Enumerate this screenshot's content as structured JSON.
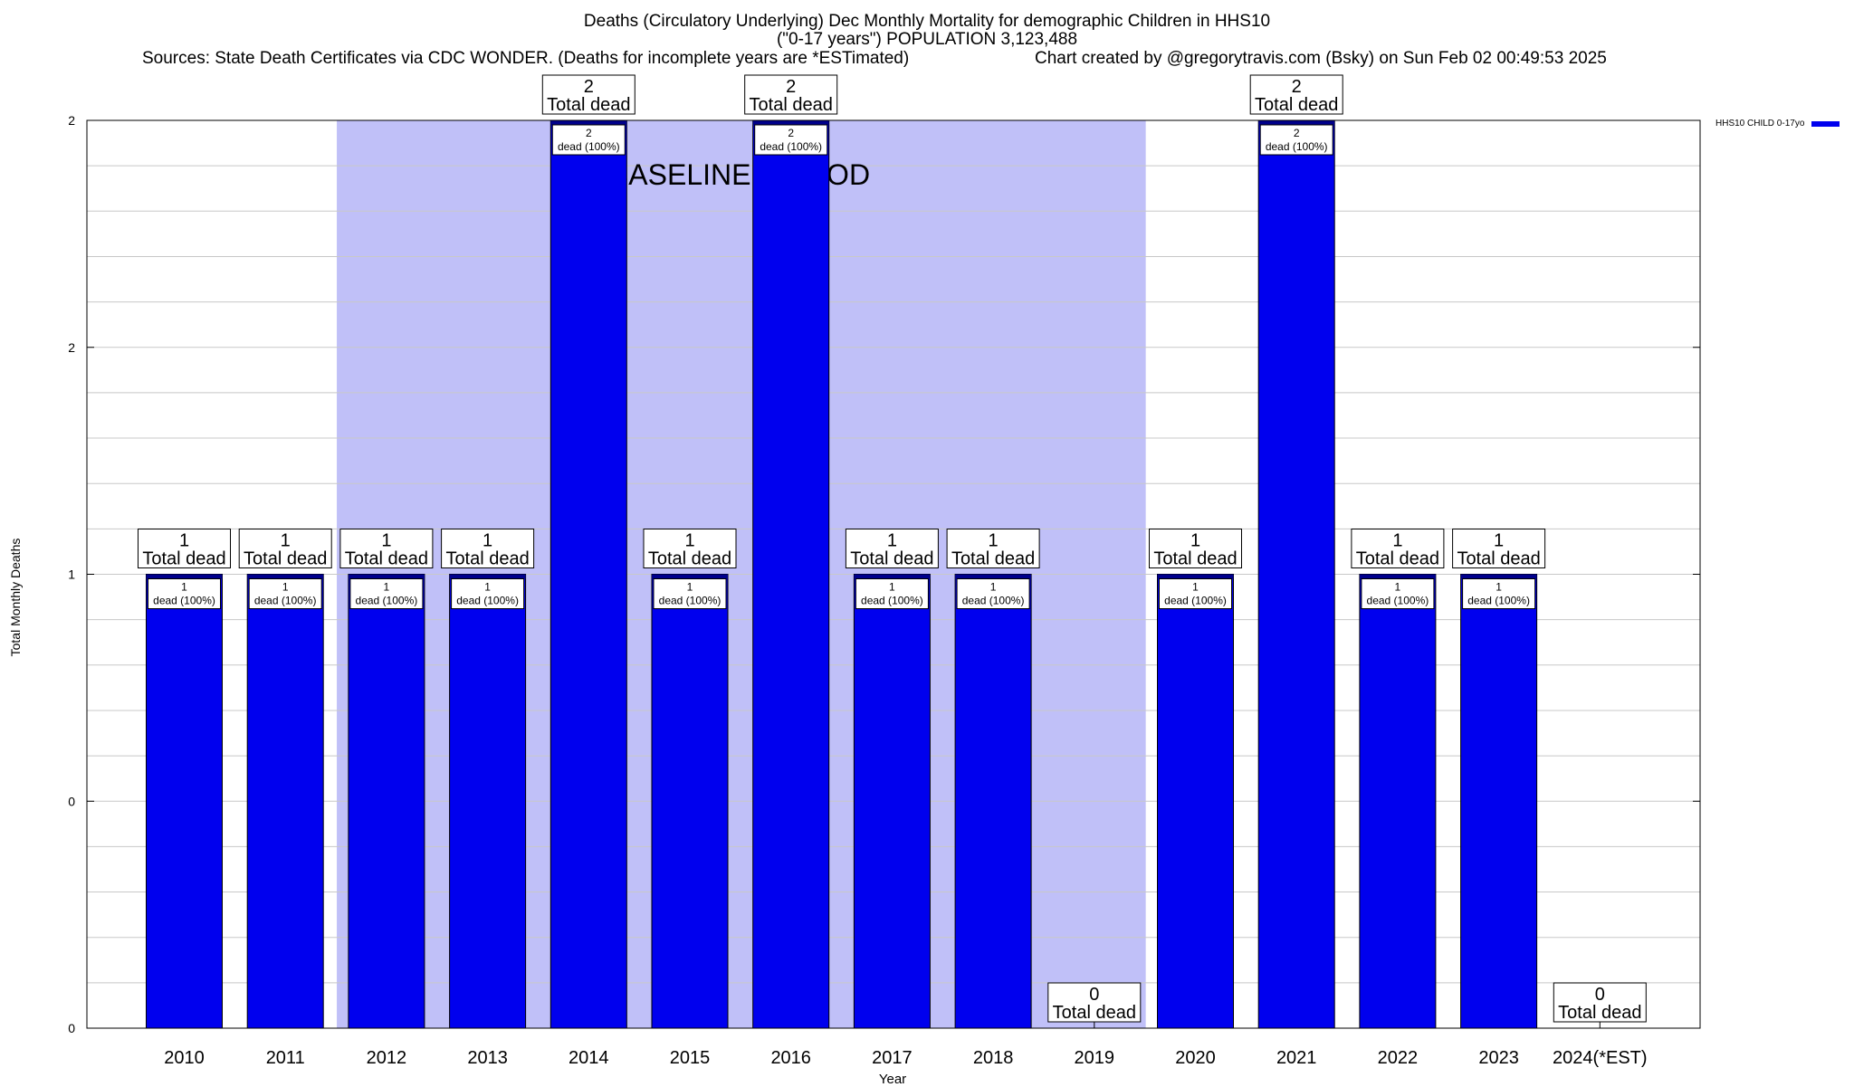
{
  "header": {
    "title_line1": "Deaths (Circulatory Underlying) Dec Monthly Mortality for demographic Children in HHS10",
    "title_line2": "(\"0-17 years\") POPULATION 3,123,488",
    "sources": "Sources: State Death Certificates via CDC WONDER. (Deaths for incomplete years are *ESTimated)",
    "credit": "Chart created by @gregorytravis.com (Bsky) on Sun Feb 02 00:49:53 2025"
  },
  "colors": {
    "bar": "#0000ee",
    "bar_top": "#00008b",
    "baseline_shade": "#c0c0f8",
    "grid": "#c8c8c8"
  },
  "chart_data": {
    "type": "bar",
    "xlabel": "Year",
    "ylabel": "Total Monthly Deaths",
    "categories": [
      "2010",
      "2011",
      "2012",
      "2013",
      "2014",
      "2015",
      "2016",
      "2017",
      "2018",
      "2019",
      "2020",
      "2021",
      "2022",
      "2023",
      "2024(*EST)"
    ],
    "series": [
      {
        "name": "HHS10 CHILD 0-17yo",
        "values": [
          1,
          1,
          1,
          1,
          2,
          1,
          2,
          1,
          1,
          0,
          1,
          2,
          1,
          1,
          0
        ]
      }
    ],
    "ylim": [
      0,
      2
    ],
    "yticks": [
      {
        "value": 0,
        "label": "0"
      },
      {
        "value": 0.5,
        "label": "0"
      },
      {
        "value": 1,
        "label": "1"
      },
      {
        "value": 1.5,
        "label": "2"
      },
      {
        "value": 2,
        "label": "2"
      }
    ],
    "grid": true,
    "legend_position": "top-right",
    "total_label_suffix": "Total dead",
    "inner_label_suffix": "dead (100%)",
    "baseline_period": {
      "label": "BASELINE PERIOD",
      "from": "2012",
      "to": "2019"
    }
  }
}
